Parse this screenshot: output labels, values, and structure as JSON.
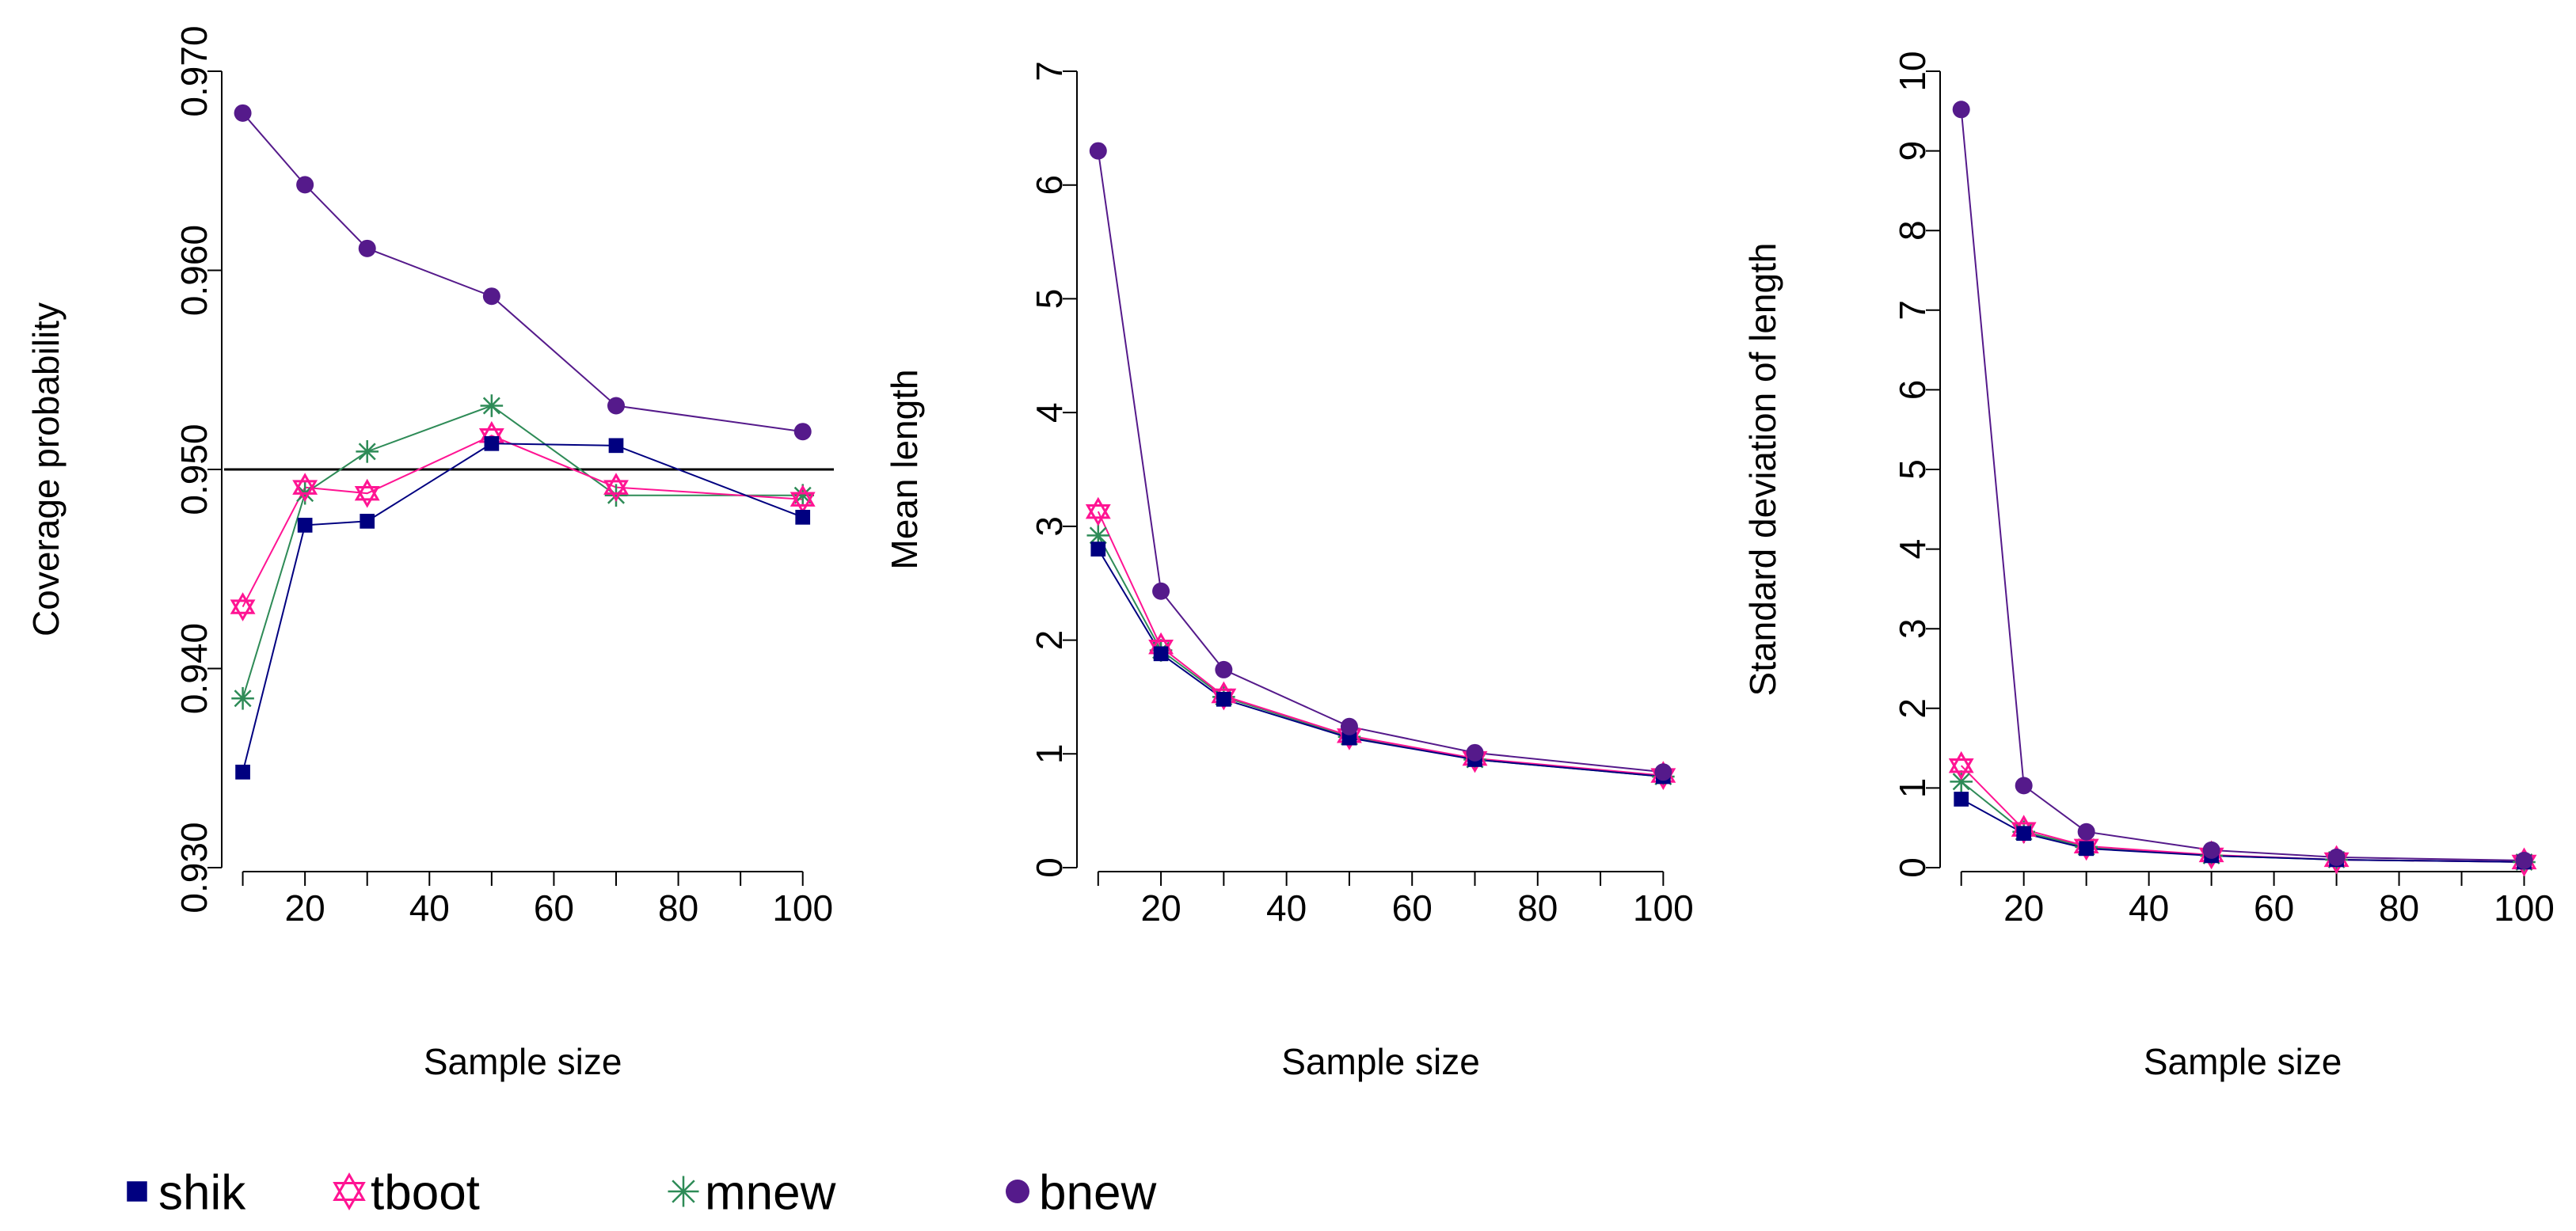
{
  "chart_data": [
    {
      "type": "line",
      "xlabel": "Sample size",
      "ylabel": "Coverage probability",
      "x": [
        10,
        20,
        30,
        50,
        70,
        100
      ],
      "xlim": [
        7,
        105
      ],
      "ylim": [
        0.93,
        0.97
      ],
      "xticks": [
        20,
        40,
        60,
        80,
        100
      ],
      "xtick_labels": [
        "20",
        "40",
        "60",
        "80",
        "100"
      ],
      "yticks": [
        0.93,
        0.94,
        0.95,
        0.96,
        0.97
      ],
      "ytick_labels": [
        "0.930",
        "0.940",
        "0.950",
        "0.960",
        "0.970"
      ],
      "reference_line": 0.95,
      "series": [
        {
          "name": "shik",
          "values": [
            0.9348,
            0.9472,
            0.9474,
            0.9513,
            0.9512,
            0.9476
          ]
        },
        {
          "name": "tboot",
          "values": [
            0.9431,
            0.9491,
            0.9488,
            0.9517,
            0.9491,
            0.9485
          ]
        },
        {
          "name": "mnew",
          "values": [
            0.9385,
            0.9488,
            0.9509,
            0.9532,
            0.9487,
            0.9487
          ]
        },
        {
          "name": "bnew",
          "values": [
            0.9679,
            0.9643,
            0.9611,
            0.9587,
            0.9532,
            0.9519
          ]
        }
      ]
    },
    {
      "type": "line",
      "xlabel": "Sample size",
      "ylabel": "Mean length",
      "x": [
        10,
        20,
        30,
        50,
        70,
        100
      ],
      "xlim": [
        7,
        105
      ],
      "ylim": [
        0,
        7
      ],
      "xticks": [
        20,
        40,
        60,
        80,
        100
      ],
      "xtick_labels": [
        "20",
        "40",
        "60",
        "80",
        "100"
      ],
      "yticks": [
        0,
        1,
        2,
        3,
        4,
        5,
        6,
        7
      ],
      "ytick_labels": [
        "0",
        "1",
        "2",
        "3",
        "4",
        "5",
        "6",
        "7"
      ],
      "series": [
        {
          "name": "shik",
          "values": [
            2.8,
            1.88,
            1.48,
            1.14,
            0.95,
            0.8
          ]
        },
        {
          "name": "tboot",
          "values": [
            3.13,
            1.94,
            1.51,
            1.16,
            0.96,
            0.81
          ]
        },
        {
          "name": "mnew",
          "values": [
            2.92,
            1.91,
            1.5,
            1.15,
            0.95,
            0.8
          ]
        },
        {
          "name": "bnew",
          "values": [
            6.3,
            2.43,
            1.74,
            1.24,
            1.01,
            0.84
          ]
        }
      ]
    },
    {
      "type": "line",
      "xlabel": "Sample size",
      "ylabel": "Standard deviation of length",
      "x": [
        10,
        20,
        30,
        50,
        70,
        100
      ],
      "xlim": [
        7,
        105
      ],
      "ylim": [
        0,
        10
      ],
      "xticks": [
        20,
        40,
        60,
        80,
        100
      ],
      "xtick_labels": [
        "20",
        "40",
        "60",
        "80",
        "100"
      ],
      "yticks": [
        0,
        1,
        2,
        3,
        4,
        5,
        6,
        7,
        8,
        9,
        10
      ],
      "ytick_labels": [
        "0",
        "1",
        "2",
        "3",
        "4",
        "5",
        "6",
        "7",
        "8",
        "9",
        "10"
      ],
      "series": [
        {
          "name": "shik",
          "values": [
            0.86,
            0.43,
            0.24,
            0.15,
            0.1,
            0.07
          ]
        },
        {
          "name": "tboot",
          "values": [
            1.28,
            0.48,
            0.27,
            0.16,
            0.1,
            0.07
          ]
        },
        {
          "name": "mnew",
          "values": [
            1.08,
            0.45,
            0.26,
            0.15,
            0.1,
            0.07
          ]
        },
        {
          "name": "bnew",
          "values": [
            9.52,
            1.03,
            0.45,
            0.22,
            0.13,
            0.09
          ]
        }
      ]
    }
  ],
  "legend": {
    "placement": "bottom",
    "items": [
      {
        "label": "shik",
        "color": "#000080",
        "marker": "square"
      },
      {
        "label": "tboot",
        "color": "#FF1493",
        "marker": "star-of-david"
      },
      {
        "label": "mnew",
        "color": "#2E8B57",
        "marker": "asterisk"
      },
      {
        "label": "bnew",
        "color": "#551A8B",
        "marker": "circle"
      }
    ]
  },
  "series_colors": {
    "shik": "#000080",
    "tboot": "#FF1493",
    "mnew": "#2E8B57",
    "bnew": "#551A8B"
  }
}
